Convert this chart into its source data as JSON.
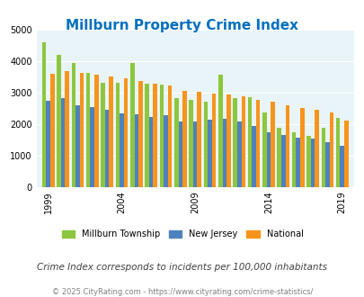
{
  "title": "Millburn Property Crime Index",
  "subtitle": "Crime Index corresponds to incidents per 100,000 inhabitants",
  "footer": "© 2025 CityRating.com - https://www.cityrating.com/crime-statistics/",
  "years": [
    1999,
    2000,
    2001,
    2002,
    2003,
    2004,
    2005,
    2006,
    2007,
    2008,
    2009,
    2010,
    2011,
    2012,
    2013,
    2014,
    2015,
    2016,
    2017,
    2018,
    2019
  ],
  "millburn": [
    4600,
    4200,
    3950,
    3620,
    3300,
    3300,
    3950,
    3280,
    3250,
    2840,
    2780,
    2700,
    3560,
    2820,
    2850,
    2380,
    1880,
    1740,
    1620,
    1880,
    2200
  ],
  "new_jersey": [
    2750,
    2820,
    2600,
    2540,
    2450,
    2350,
    2310,
    2220,
    2290,
    2080,
    2090,
    2150,
    2160,
    2070,
    1930,
    1750,
    1650,
    1560,
    1540,
    1440,
    1320
  ],
  "national": [
    3600,
    3680,
    3640,
    3580,
    3510,
    3470,
    3360,
    3290,
    3240,
    3060,
    3030,
    2970,
    2950,
    2890,
    2760,
    2700,
    2610,
    2500,
    2460,
    2360,
    2110
  ],
  "millburn_color": "#8dc63f",
  "nj_color": "#4f81bd",
  "national_color": "#f7941d",
  "bg_color": "#e8f4f8",
  "title_color": "#0070c0",
  "subtitle_color": "#404040",
  "footer_color": "#808080",
  "ylim": [
    0,
    5000
  ],
  "yticks": [
    0,
    1000,
    2000,
    3000,
    4000,
    5000
  ],
  "xtick_years": [
    1999,
    2004,
    2009,
    2014,
    2019
  ]
}
